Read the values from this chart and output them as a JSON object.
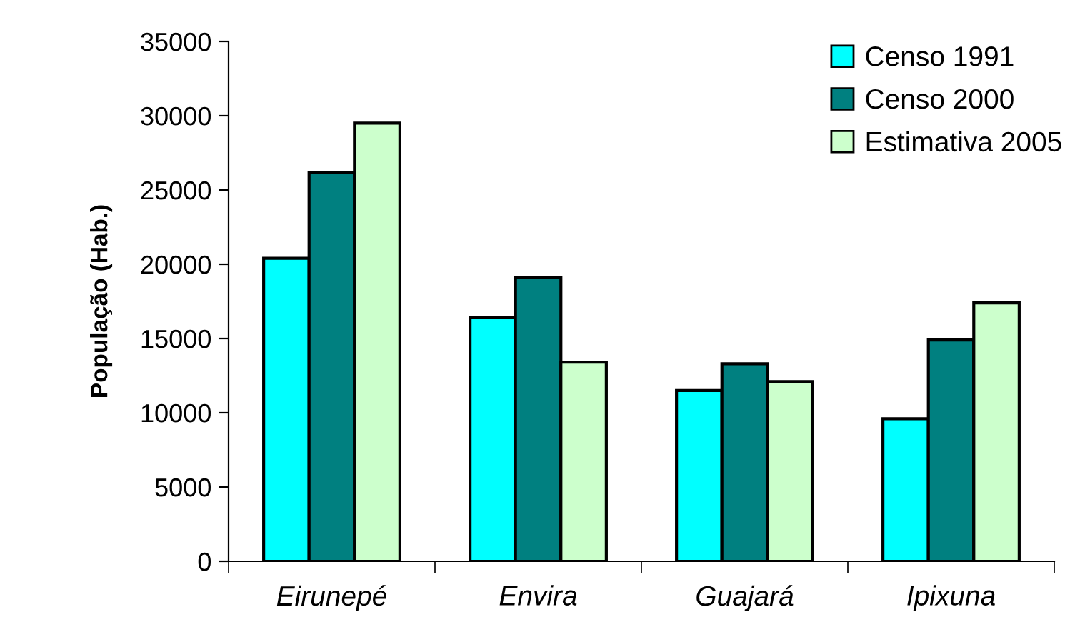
{
  "chart_data": {
    "type": "bar",
    "ylabel": "População (Hab.)",
    "categories": [
      "Eirunepé",
      "Envira",
      "Guajará",
      "Ipixuna"
    ],
    "series": [
      {
        "name": "Censo 1991",
        "color": "#00ffff",
        "values": [
          20400,
          16400,
          11500,
          9600
        ]
      },
      {
        "name": "Censo 2000",
        "color": "#008080",
        "values": [
          26200,
          19100,
          13300,
          14900
        ]
      },
      {
        "name": "Estimativa 2005",
        "color": "#ccffcc",
        "values": [
          29500,
          13400,
          12100,
          17400
        ]
      }
    ],
    "ylim": [
      0,
      35000
    ],
    "yticks": [
      0,
      5000,
      10000,
      15000,
      20000,
      25000,
      30000,
      35000
    ],
    "grid": false,
    "legend": "top right"
  }
}
